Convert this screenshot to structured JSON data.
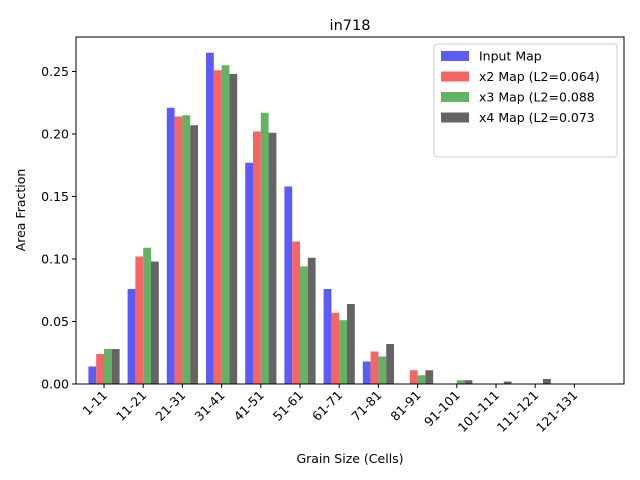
{
  "chart_data": {
    "type": "bar",
    "title": "in718",
    "xlabel": "Grain Size (Cells)",
    "ylabel": "Area Fraction",
    "categories": [
      "1-11",
      "11-21",
      "21-31",
      "31-41",
      "41-51",
      "51-61",
      "61-71",
      "71-81",
      "81-91",
      "91-101",
      "101-111",
      "111-121",
      "121-131"
    ],
    "ylim": [
      0,
      0.275
    ],
    "yticks": [
      0.0,
      0.05,
      0.1,
      0.15,
      0.2,
      0.25
    ],
    "ytick_labels": [
      "0.00",
      "0.05",
      "0.10",
      "0.15",
      "0.20",
      "0.25"
    ],
    "grid": false,
    "legend_position": "top-right",
    "series": [
      {
        "name": "Input Map",
        "color": "#5b5bf6",
        "values": [
          0.014,
          0.076,
          0.221,
          0.265,
          0.177,
          0.158,
          0.076,
          0.018,
          0.0,
          0.0,
          0.0,
          0.0,
          0.0
        ]
      },
      {
        "name": "x2 Map (L2=0.064)",
        "color": "#f66464",
        "values": [
          0.024,
          0.102,
          0.214,
          0.251,
          0.202,
          0.114,
          0.057,
          0.026,
          0.011,
          0.0,
          0.0,
          0.0,
          0.0
        ]
      },
      {
        "name": "x3 Map (L2=0.088",
        "color": "#64b264",
        "values": [
          0.028,
          0.109,
          0.215,
          0.255,
          0.217,
          0.094,
          0.051,
          0.022,
          0.007,
          0.003,
          0.0,
          0.0,
          0.0
        ]
      },
      {
        "name": "x4 Map (L2=0.073",
        "color": "#646464",
        "values": [
          0.028,
          0.098,
          0.207,
          0.248,
          0.201,
          0.101,
          0.064,
          0.032,
          0.011,
          0.003,
          0.002,
          0.004,
          0.0
        ]
      }
    ]
  }
}
